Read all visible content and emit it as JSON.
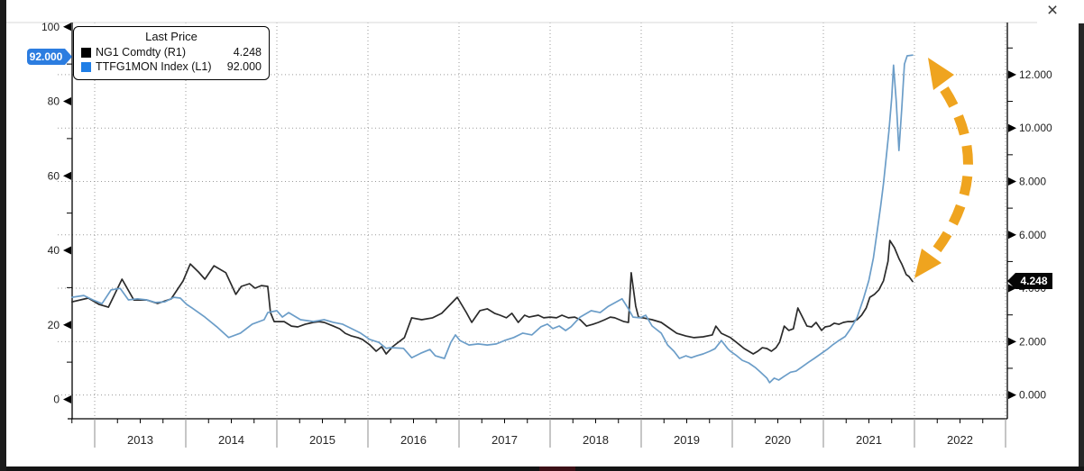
{
  "window": {
    "close_icon": "×"
  },
  "legend": {
    "title": "Last Price",
    "rows": [
      {
        "label": "NG1 Comdty  (R1)",
        "value": "4.248",
        "color": "#000000"
      },
      {
        "label": "TTFG1MON Index  (L1)",
        "value": "92.000",
        "color": "#1f7ee6"
      }
    ]
  },
  "axis_tags": {
    "left": {
      "text": "92.000",
      "color": "#2c7de0"
    },
    "right": {
      "text": "4.248",
      "color": "#050505"
    }
  },
  "chart_data": {
    "type": "line",
    "title": "",
    "grid": "dotted",
    "x_axis": {
      "labels": [
        "2013",
        "2014",
        "2015",
        "2016",
        "2017",
        "2018",
        "2019",
        "2020",
        "2021",
        "2022"
      ],
      "dividers": [
        2013,
        2014,
        2015,
        2016,
        2017,
        2018,
        2019,
        2020,
        2021,
        2022,
        2023
      ],
      "minor_interval_years": 0.25,
      "range_years": [
        2012.75,
        2023.0
      ]
    },
    "left_axis": {
      "title": "TTFG1MON Index (L1)",
      "range": [
        0,
        100
      ],
      "ticks": [
        {
          "value": 0,
          "label": "0"
        },
        {
          "value": 20,
          "label": "20"
        },
        {
          "value": 40,
          "label": "40"
        },
        {
          "value": 60,
          "label": "60"
        },
        {
          "value": 80,
          "label": "80"
        },
        {
          "value": 100,
          "label": "100"
        }
      ],
      "minor": [
        10,
        30,
        50,
        70,
        90
      ]
    },
    "right_axis": {
      "title": "NG1 Comdty (R1)",
      "range": [
        0,
        12
      ],
      "ticks": [
        {
          "value": 0,
          "label": "0.000"
        },
        {
          "value": 2,
          "label": "2.000"
        },
        {
          "value": 4,
          "label": "4.000"
        },
        {
          "value": 6,
          "label": "6.000"
        },
        {
          "value": 8,
          "label": "8.000"
        },
        {
          "value": 10,
          "label": "10.000"
        },
        {
          "value": 12,
          "label": "12.000"
        }
      ],
      "minor": [
        1,
        3,
        5,
        7,
        9,
        11,
        13
      ]
    },
    "series": [
      {
        "name": "NG1 Comdty",
        "axis": "right",
        "color": "#2b2b2b",
        "last_price": 4.248,
        "points": [
          [
            2012.75,
            3.49
          ],
          [
            2012.93,
            3.63
          ],
          [
            2013.05,
            3.39
          ],
          [
            2013.15,
            3.29
          ],
          [
            2013.3,
            4.34
          ],
          [
            2013.43,
            3.56
          ],
          [
            2013.57,
            3.56
          ],
          [
            2013.69,
            3.43
          ],
          [
            2013.84,
            3.6
          ],
          [
            2013.97,
            4.27
          ],
          [
            2014.05,
            4.91
          ],
          [
            2014.14,
            4.61
          ],
          [
            2014.21,
            4.34
          ],
          [
            2014.31,
            4.84
          ],
          [
            2014.44,
            4.58
          ],
          [
            2014.55,
            3.77
          ],
          [
            2014.61,
            4.07
          ],
          [
            2014.7,
            4.17
          ],
          [
            2014.76,
            4.0
          ],
          [
            2014.83,
            4.1
          ],
          [
            2014.9,
            4.07
          ],
          [
            2014.93,
            3.09
          ],
          [
            2014.97,
            2.75
          ],
          [
            2015.08,
            2.75
          ],
          [
            2015.16,
            2.58
          ],
          [
            2015.23,
            2.55
          ],
          [
            2015.31,
            2.65
          ],
          [
            2015.4,
            2.72
          ],
          [
            2015.46,
            2.75
          ],
          [
            2015.52,
            2.72
          ],
          [
            2015.62,
            2.58
          ],
          [
            2015.69,
            2.48
          ],
          [
            2015.75,
            2.31
          ],
          [
            2015.82,
            2.21
          ],
          [
            2015.89,
            2.15
          ],
          [
            2015.94,
            2.08
          ],
          [
            2016.02,
            1.88
          ],
          [
            2016.09,
            1.64
          ],
          [
            2016.15,
            1.81
          ],
          [
            2016.2,
            1.54
          ],
          [
            2016.27,
            1.81
          ],
          [
            2016.4,
            2.15
          ],
          [
            2016.48,
            2.89
          ],
          [
            2016.59,
            2.82
          ],
          [
            2016.71,
            2.89
          ],
          [
            2016.81,
            3.06
          ],
          [
            2016.98,
            3.66
          ],
          [
            2017.08,
            3.09
          ],
          [
            2017.14,
            2.72
          ],
          [
            2017.23,
            3.16
          ],
          [
            2017.31,
            3.23
          ],
          [
            2017.39,
            3.06
          ],
          [
            2017.45,
            2.99
          ],
          [
            2017.52,
            2.89
          ],
          [
            2017.58,
            3.06
          ],
          [
            2017.65,
            2.72
          ],
          [
            2017.72,
            2.99
          ],
          [
            2017.77,
            2.92
          ],
          [
            2017.87,
            2.99
          ],
          [
            2017.93,
            2.89
          ],
          [
            2018.0,
            2.92
          ],
          [
            2018.07,
            2.89
          ],
          [
            2018.13,
            2.99
          ],
          [
            2018.2,
            2.89
          ],
          [
            2018.27,
            2.92
          ],
          [
            2018.33,
            2.82
          ],
          [
            2018.4,
            2.58
          ],
          [
            2018.47,
            2.65
          ],
          [
            2018.53,
            2.72
          ],
          [
            2018.6,
            2.82
          ],
          [
            2018.66,
            2.92
          ],
          [
            2018.71,
            2.89
          ],
          [
            2018.76,
            2.82
          ],
          [
            2018.81,
            2.75
          ],
          [
            2018.86,
            2.72
          ],
          [
            2018.89,
            4.58
          ],
          [
            2018.94,
            3.33
          ],
          [
            2018.97,
            2.92
          ],
          [
            2019.02,
            2.89
          ],
          [
            2019.12,
            2.82
          ],
          [
            2019.22,
            2.72
          ],
          [
            2019.29,
            2.55
          ],
          [
            2019.39,
            2.31
          ],
          [
            2019.49,
            2.21
          ],
          [
            2019.58,
            2.15
          ],
          [
            2019.68,
            2.18
          ],
          [
            2019.78,
            2.25
          ],
          [
            2019.82,
            2.58
          ],
          [
            2019.88,
            2.31
          ],
          [
            2019.98,
            2.15
          ],
          [
            2020.08,
            1.88
          ],
          [
            2020.13,
            1.74
          ],
          [
            2020.18,
            1.64
          ],
          [
            2020.23,
            1.54
          ],
          [
            2020.28,
            1.64
          ],
          [
            2020.33,
            1.77
          ],
          [
            2020.38,
            1.74
          ],
          [
            2020.43,
            1.64
          ],
          [
            2020.48,
            1.77
          ],
          [
            2020.52,
            1.98
          ],
          [
            2020.57,
            2.58
          ],
          [
            2020.62,
            2.42
          ],
          [
            2020.67,
            2.48
          ],
          [
            2020.72,
            3.26
          ],
          [
            2020.77,
            2.92
          ],
          [
            2020.82,
            2.58
          ],
          [
            2020.87,
            2.55
          ],
          [
            2020.92,
            2.72
          ],
          [
            2020.98,
            2.42
          ],
          [
            2021.02,
            2.55
          ],
          [
            2021.07,
            2.58
          ],
          [
            2021.12,
            2.69
          ],
          [
            2021.17,
            2.65
          ],
          [
            2021.22,
            2.72
          ],
          [
            2021.27,
            2.75
          ],
          [
            2021.32,
            2.75
          ],
          [
            2021.37,
            2.82
          ],
          [
            2021.42,
            2.99
          ],
          [
            2021.47,
            3.26
          ],
          [
            2021.51,
            3.66
          ],
          [
            2021.56,
            3.77
          ],
          [
            2021.61,
            3.94
          ],
          [
            2021.66,
            4.28
          ],
          [
            2021.71,
            5.01
          ],
          [
            2021.73,
            5.79
          ],
          [
            2021.78,
            5.52
          ],
          [
            2021.83,
            5.11
          ],
          [
            2021.86,
            4.91
          ],
          [
            2021.91,
            4.51
          ],
          [
            2021.94,
            4.44
          ],
          [
            2021.98,
            4.25
          ]
        ]
      },
      {
        "name": "TTFG1MON Index",
        "axis": "left",
        "color": "#6b9dc8",
        "last_price": 92.0,
        "points": [
          [
            2012.75,
            27.4
          ],
          [
            2012.88,
            27.9
          ],
          [
            2012.98,
            26.7
          ],
          [
            2013.08,
            25.7
          ],
          [
            2013.18,
            29.4
          ],
          [
            2013.28,
            29.8
          ],
          [
            2013.37,
            26.7
          ],
          [
            2013.47,
            27.0
          ],
          [
            2013.57,
            26.7
          ],
          [
            2013.67,
            26.0
          ],
          [
            2013.77,
            26.2
          ],
          [
            2013.87,
            27.4
          ],
          [
            2013.94,
            27.2
          ],
          [
            2014.01,
            25.5
          ],
          [
            2014.07,
            24.5
          ],
          [
            2014.21,
            22.1
          ],
          [
            2014.34,
            19.5
          ],
          [
            2014.47,
            16.6
          ],
          [
            2014.6,
            17.8
          ],
          [
            2014.73,
            20.2
          ],
          [
            2014.86,
            21.4
          ],
          [
            2014.9,
            23.3
          ],
          [
            2015.0,
            23.8
          ],
          [
            2015.06,
            22.1
          ],
          [
            2015.13,
            23.3
          ],
          [
            2015.26,
            21.4
          ],
          [
            2015.4,
            20.9
          ],
          [
            2015.52,
            21.4
          ],
          [
            2015.62,
            20.7
          ],
          [
            2015.72,
            20.2
          ],
          [
            2015.82,
            19.0
          ],
          [
            2015.92,
            17.8
          ],
          [
            2016.02,
            16.1
          ],
          [
            2016.12,
            15.3
          ],
          [
            2016.2,
            13.7
          ],
          [
            2016.25,
            13.9
          ],
          [
            2016.39,
            13.7
          ],
          [
            2016.48,
            11.2
          ],
          [
            2016.58,
            12.4
          ],
          [
            2016.68,
            13.4
          ],
          [
            2016.74,
            11.7
          ],
          [
            2016.84,
            11.0
          ],
          [
            2016.91,
            15.3
          ],
          [
            2016.96,
            17.3
          ],
          [
            2017.01,
            15.8
          ],
          [
            2017.11,
            14.6
          ],
          [
            2017.21,
            14.9
          ],
          [
            2017.31,
            14.6
          ],
          [
            2017.41,
            14.9
          ],
          [
            2017.5,
            15.8
          ],
          [
            2017.6,
            16.6
          ],
          [
            2017.7,
            17.8
          ],
          [
            2017.8,
            17.3
          ],
          [
            2017.9,
            19.5
          ],
          [
            2017.97,
            20.2
          ],
          [
            2018.03,
            19.0
          ],
          [
            2018.1,
            19.7
          ],
          [
            2018.17,
            18.5
          ],
          [
            2018.23,
            19.5
          ],
          [
            2018.33,
            22.1
          ],
          [
            2018.45,
            23.8
          ],
          [
            2018.55,
            23.3
          ],
          [
            2018.64,
            25.0
          ],
          [
            2018.79,
            27.0
          ],
          [
            2018.86,
            24.3
          ],
          [
            2018.91,
            22.1
          ],
          [
            2018.99,
            21.9
          ],
          [
            2019.05,
            22.6
          ],
          [
            2019.12,
            19.7
          ],
          [
            2019.22,
            17.8
          ],
          [
            2019.29,
            14.6
          ],
          [
            2019.36,
            12.9
          ],
          [
            2019.42,
            11.0
          ],
          [
            2019.49,
            11.7
          ],
          [
            2019.55,
            11.2
          ],
          [
            2019.61,
            11.7
          ],
          [
            2019.68,
            12.2
          ],
          [
            2019.75,
            12.9
          ],
          [
            2019.81,
            13.6
          ],
          [
            2019.88,
            15.8
          ],
          [
            2019.95,
            13.6
          ],
          [
            2019.98,
            12.9
          ],
          [
            2020.05,
            11.7
          ],
          [
            2020.11,
            10.5
          ],
          [
            2020.18,
            9.8
          ],
          [
            2020.25,
            8.6
          ],
          [
            2020.31,
            7.3
          ],
          [
            2020.38,
            5.7
          ],
          [
            2020.41,
            4.5
          ],
          [
            2020.46,
            5.7
          ],
          [
            2020.51,
            5.2
          ],
          [
            2020.57,
            6.2
          ],
          [
            2020.64,
            7.3
          ],
          [
            2020.7,
            7.6
          ],
          [
            2020.77,
            8.8
          ],
          [
            2020.84,
            10.0
          ],
          [
            2020.9,
            11.0
          ],
          [
            2020.97,
            12.2
          ],
          [
            2021.04,
            13.4
          ],
          [
            2021.1,
            14.6
          ],
          [
            2021.17,
            15.8
          ],
          [
            2021.24,
            16.9
          ],
          [
            2021.3,
            19.0
          ],
          [
            2021.37,
            22.0
          ],
          [
            2021.44,
            27.0
          ],
          [
            2021.5,
            32.0
          ],
          [
            2021.55,
            38.0
          ],
          [
            2021.59,
            45.0
          ],
          [
            2021.63,
            52.0
          ],
          [
            2021.66,
            58.0
          ],
          [
            2021.69,
            65.0
          ],
          [
            2021.72,
            72.0
          ],
          [
            2021.75,
            81.0
          ],
          [
            2021.77,
            89.7
          ],
          [
            2021.8,
            80.0
          ],
          [
            2021.83,
            66.8
          ],
          [
            2021.86,
            78.0
          ],
          [
            2021.89,
            90.0
          ],
          [
            2021.92,
            92.2
          ],
          [
            2021.98,
            92.4
          ]
        ]
      }
    ],
    "annotation_arrow": {
      "description": "double-headed dashed curved arrow between TTF spike top and NG1 last price",
      "color": "#efa41f",
      "style": "dashed"
    }
  }
}
